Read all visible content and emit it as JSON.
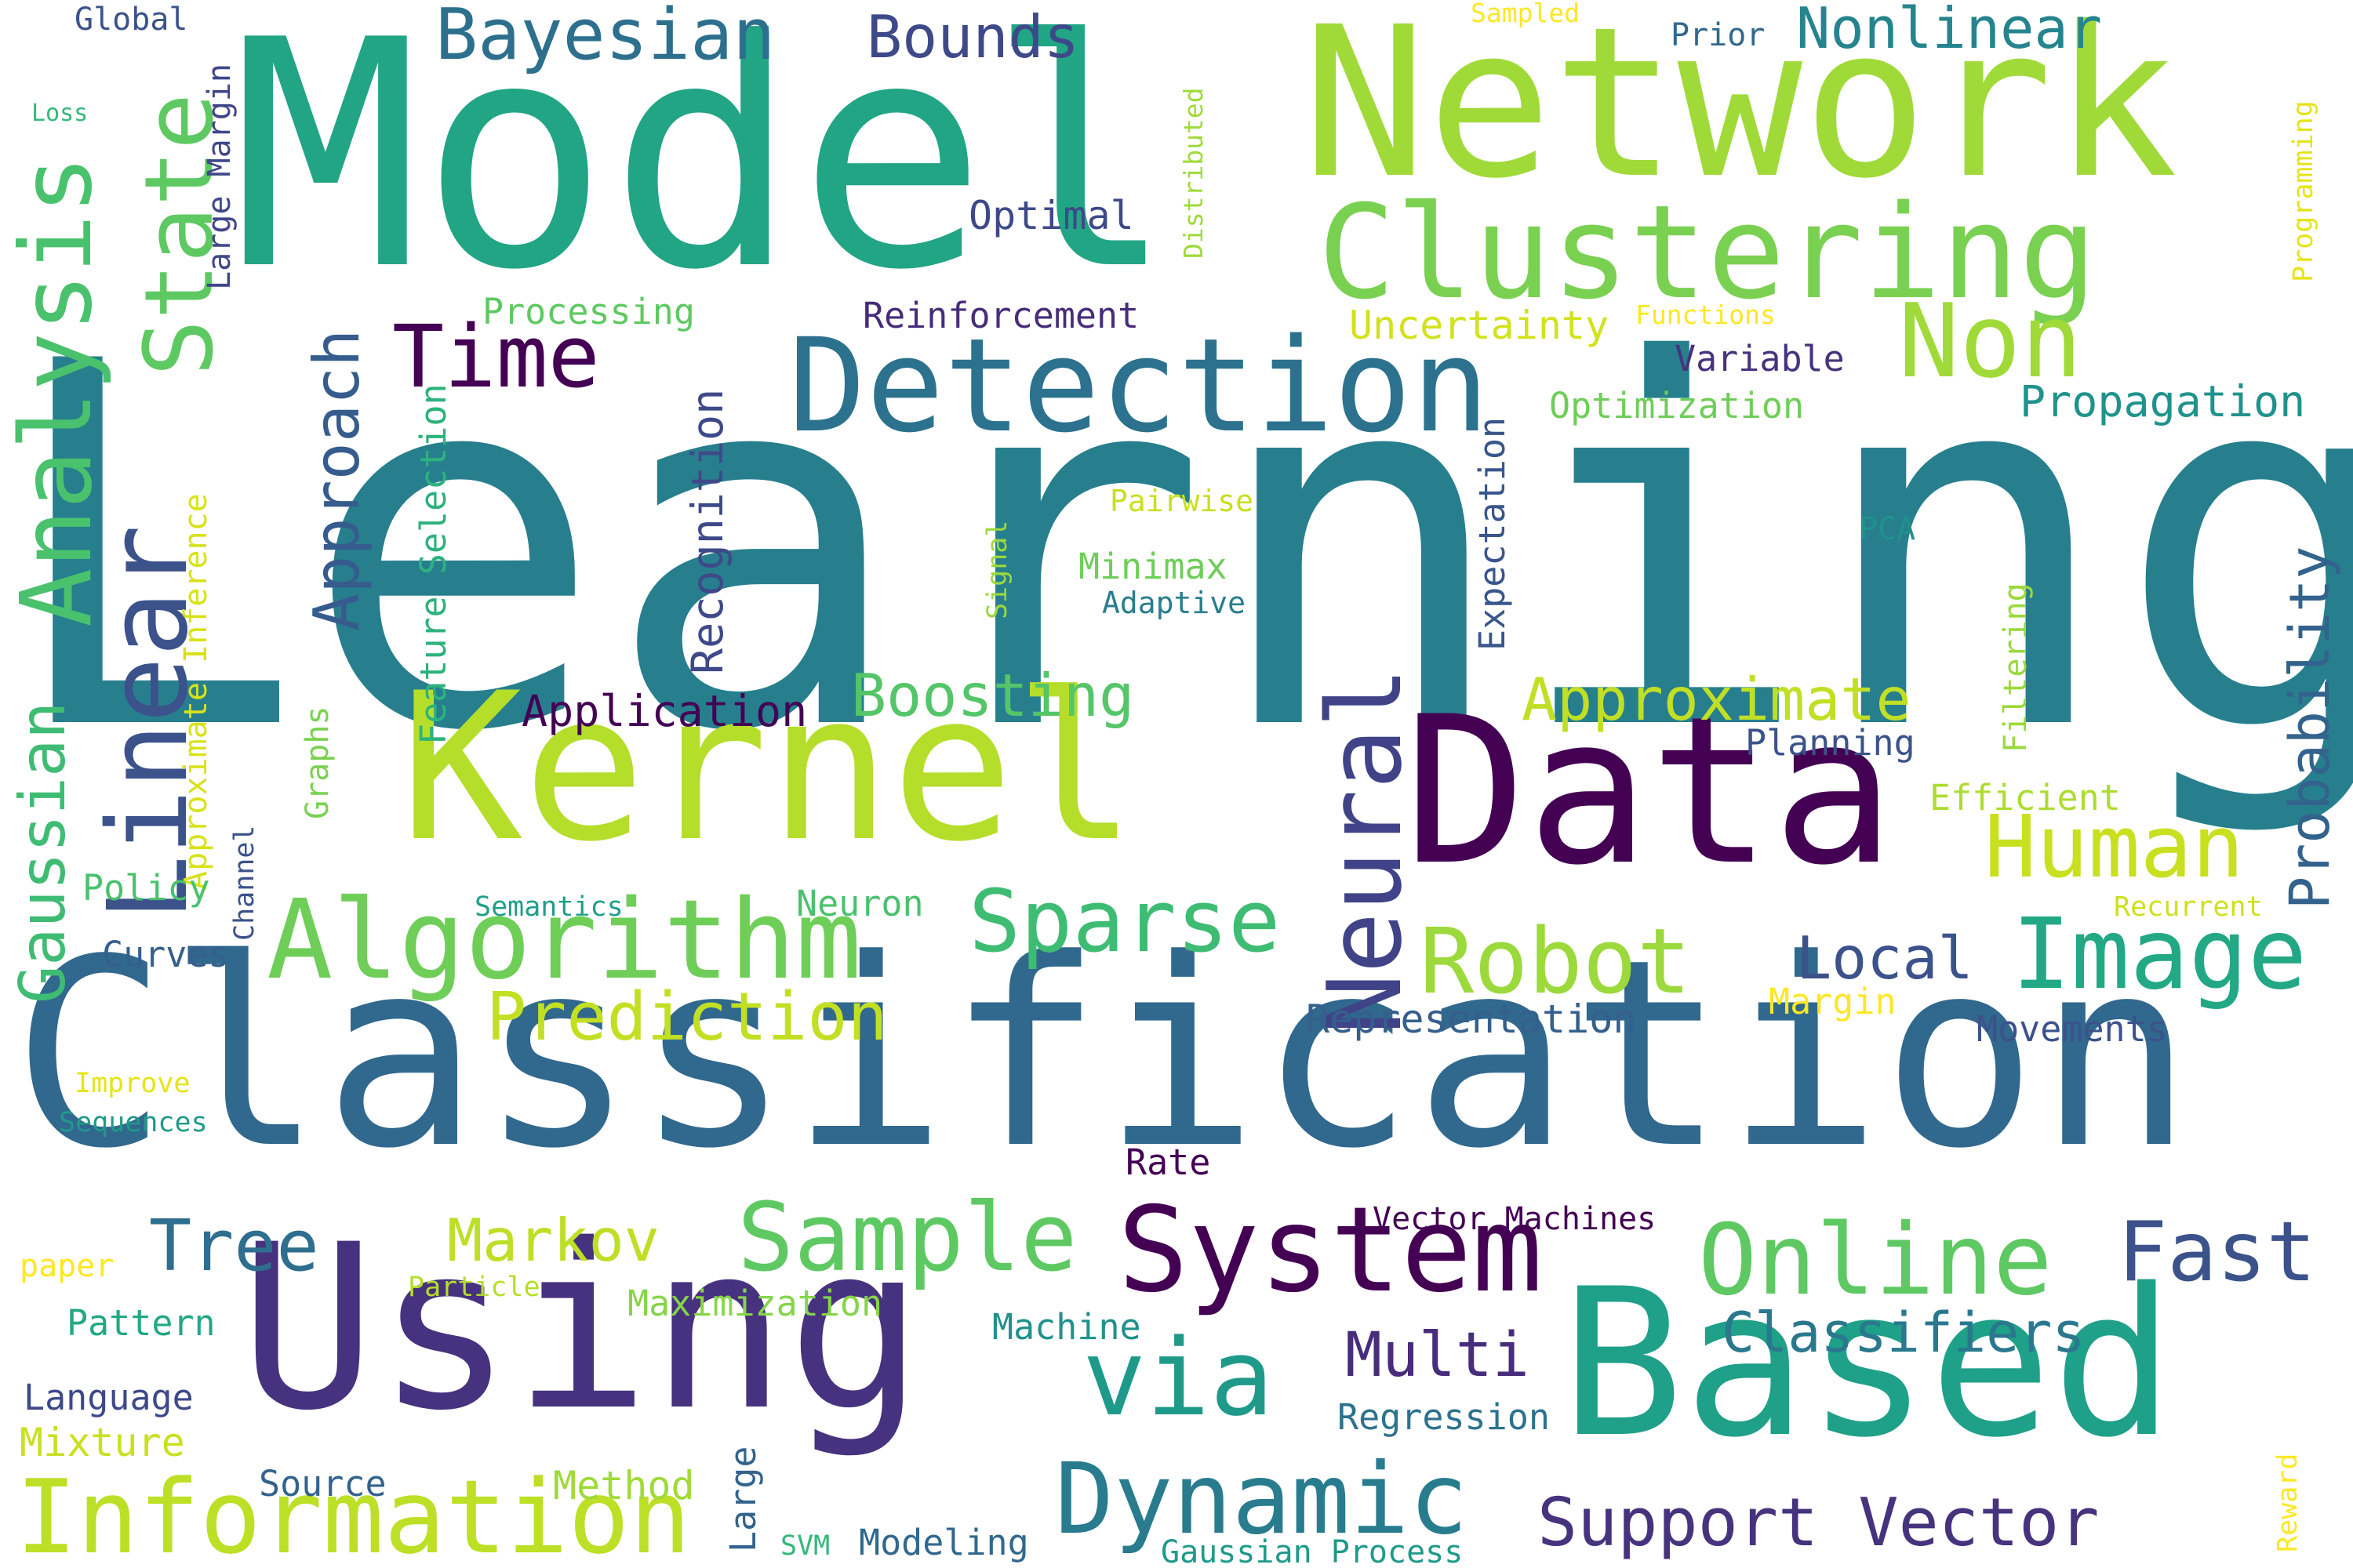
{
  "palette": {
    "background": "#ffffff"
  },
  "words": [
    {
      "id": "w1",
      "text": "Learning",
      "color": "#277f8e"
    },
    {
      "id": "w2",
      "text": "Classification",
      "color": "#31688e"
    },
    {
      "id": "w3",
      "text": "Model",
      "color": "#21a585"
    },
    {
      "id": "w4",
      "text": "Network",
      "color": "#a0da39"
    },
    {
      "id": "w5",
      "text": "Kernel",
      "color": "#b5de2b"
    },
    {
      "id": "w6",
      "text": "Data",
      "color": "#440154"
    },
    {
      "id": "w7",
      "text": "Using",
      "color": "#46327e"
    },
    {
      "id": "w8",
      "text": "Based",
      "color": "#1fa088"
    },
    {
      "id": "w9",
      "text": "Clustering",
      "color": "#7ad151"
    },
    {
      "id": "w10",
      "text": "Detection",
      "color": "#2c728e"
    },
    {
      "id": "w11",
      "text": "Algorithm",
      "color": "#6ece58"
    },
    {
      "id": "w12",
      "text": "System",
      "color": "#440154"
    },
    {
      "id": "w13",
      "text": "Linear",
      "color": "#3b528b"
    },
    {
      "id": "w14",
      "text": "State",
      "color": "#5ec962"
    },
    {
      "id": "w15",
      "text": "Analysis",
      "color": "#4ac16d"
    },
    {
      "id": "w16",
      "text": "Non",
      "color": "#a0da39"
    },
    {
      "id": "w17",
      "text": "Neural",
      "color": "#404387"
    },
    {
      "id": "w18",
      "text": "Image",
      "color": "#22a884"
    },
    {
      "id": "w19",
      "text": "Online",
      "color": "#5ec962"
    },
    {
      "id": "w20",
      "text": "Sample",
      "color": "#5ec962"
    },
    {
      "id": "w21",
      "text": "Information",
      "color": "#bddf26"
    },
    {
      "id": "w22",
      "text": "Dynamic",
      "color": "#287c8e"
    },
    {
      "id": "w23",
      "text": "via",
      "color": "#1f9a8a"
    },
    {
      "id": "w24",
      "text": "Robot",
      "color": "#9bd93c"
    },
    {
      "id": "w25",
      "text": "Sparse",
      "color": "#3fbc73"
    },
    {
      "id": "w26",
      "text": "Human",
      "color": "#c8e020"
    },
    {
      "id": "w27",
      "text": "Fast",
      "color": "#3b528b"
    },
    {
      "id": "w28",
      "text": "Support Vector",
      "color": "#46337e"
    },
    {
      "id": "w29",
      "text": "Time",
      "color": "#440154"
    },
    {
      "id": "w30",
      "text": "Tree",
      "color": "#2e6e8e"
    },
    {
      "id": "w31",
      "text": "Bayesian",
      "color": "#2d708e"
    },
    {
      "id": "w32",
      "text": "Bounds",
      "color": "#3e4989"
    },
    {
      "id": "w33",
      "text": "Nonlinear",
      "color": "#25848e"
    },
    {
      "id": "w34",
      "text": "Approach",
      "color": "#365c8d"
    },
    {
      "id": "w35",
      "text": "Gaussian",
      "color": "#3fbc73"
    },
    {
      "id": "w36",
      "text": "Approximate",
      "color": "#c0df25"
    },
    {
      "id": "w37",
      "text": "Boosting",
      "color": "#54c568"
    },
    {
      "id": "w38",
      "text": "Prediction",
      "color": "#c2df23"
    },
    {
      "id": "w39",
      "text": "Local",
      "color": "#3b528b"
    },
    {
      "id": "w40",
      "text": "Probability",
      "color": "#33638d"
    },
    {
      "id": "w41",
      "text": "Markov",
      "color": "#bddf26"
    },
    {
      "id": "w42",
      "text": "Multi",
      "color": "#472d7b"
    },
    {
      "id": "w43",
      "text": "Classifiers",
      "color": "#2a788e"
    },
    {
      "id": "w44",
      "text": "Application",
      "color": "#440154"
    },
    {
      "id": "w45",
      "text": "Propagation",
      "color": "#20928c"
    },
    {
      "id": "w46",
      "text": "Recognition",
      "color": "#3e4989"
    },
    {
      "id": "w47",
      "text": "Representation",
      "color": "#355f8d"
    },
    {
      "id": "w48",
      "text": "Optimal",
      "color": "#3e4989"
    },
    {
      "id": "w49",
      "text": "Reinforcement",
      "color": "#472c7a"
    },
    {
      "id": "w50",
      "text": "Processing",
      "color": "#5ec962"
    },
    {
      "id": "w51",
      "text": "Uncertainty",
      "color": "#d2e21b"
    },
    {
      "id": "w52",
      "text": "Variable",
      "color": "#46337e"
    },
    {
      "id": "w53",
      "text": "Optimization",
      "color": "#6ece58"
    },
    {
      "id": "w54",
      "text": "Expectation",
      "color": "#39568c"
    },
    {
      "id": "w55",
      "text": "Feature Selection",
      "color": "#2db27d"
    },
    {
      "id": "w56",
      "text": "Large Margin",
      "color": "#404688"
    },
    {
      "id": "w57",
      "text": "Approximate Inference",
      "color": "#d8e219"
    },
    {
      "id": "w58",
      "text": "Minimax",
      "color": "#6ece58"
    },
    {
      "id": "w59",
      "text": "Adaptive",
      "color": "#287d8e"
    },
    {
      "id": "w60",
      "text": "Pairwise",
      "color": "#c8e020"
    },
    {
      "id": "w61",
      "text": "PCA",
      "color": "#21918c"
    },
    {
      "id": "w62",
      "text": "Planning",
      "color": "#3b528b"
    },
    {
      "id": "w63",
      "text": "Efficient",
      "color": "#addc30"
    },
    {
      "id": "w64",
      "text": "Filtering",
      "color": "#9bd93c"
    },
    {
      "id": "w65",
      "text": "Recurrent",
      "color": "#cde11d"
    },
    {
      "id": "w66",
      "text": "Movements",
      "color": "#3b528b"
    },
    {
      "id": "w67",
      "text": "Margin",
      "color": "#fde725"
    },
    {
      "id": "w68",
      "text": "Neuron",
      "color": "#4ac16d"
    },
    {
      "id": "w69",
      "text": "Semantics",
      "color": "#1f9e89"
    },
    {
      "id": "w70",
      "text": "Policy",
      "color": "#4ac16d"
    },
    {
      "id": "w71",
      "text": "Curves",
      "color": "#355f8d"
    },
    {
      "id": "w72",
      "text": "Channel",
      "color": "#3b528b"
    },
    {
      "id": "w73",
      "text": "Graphs",
      "color": "#7ad151"
    },
    {
      "id": "w74",
      "text": "Signal",
      "color": "#9bd93c"
    },
    {
      "id": "w75",
      "text": "Improve",
      "color": "#e5e419"
    },
    {
      "id": "w76",
      "text": "Sequences",
      "color": "#1f9a8a"
    },
    {
      "id": "w77",
      "text": "Rate",
      "color": "#440154"
    },
    {
      "id": "w78",
      "text": "Vector Machines",
      "color": "#440154"
    },
    {
      "id": "w79",
      "text": "paper",
      "color": "#fde725"
    },
    {
      "id": "w80",
      "text": "Particle",
      "color": "#b5de2b"
    },
    {
      "id": "w81",
      "text": "Maximization",
      "color": "#86d549"
    },
    {
      "id": "w82",
      "text": "Pattern",
      "color": "#22a884"
    },
    {
      "id": "w83",
      "text": "Machine",
      "color": "#21918c"
    },
    {
      "id": "w84",
      "text": "Language",
      "color": "#3e4989"
    },
    {
      "id": "w85",
      "text": "Mixture",
      "color": "#c8e020"
    },
    {
      "id": "w86",
      "text": "Regression",
      "color": "#2c728e"
    },
    {
      "id": "w87",
      "text": "Source",
      "color": "#33638d"
    },
    {
      "id": "w88",
      "text": "Method",
      "color": "#a0da39"
    },
    {
      "id": "w89",
      "text": "Large",
      "color": "#33638d"
    },
    {
      "id": "w90",
      "text": "SVM",
      "color": "#35b779"
    },
    {
      "id": "w91",
      "text": "Modeling",
      "color": "#31688e"
    },
    {
      "id": "w92",
      "text": "Gaussian Process",
      "color": "#1f9a8a"
    },
    {
      "id": "w93",
      "text": "Reward",
      "color": "#fde725"
    },
    {
      "id": "w94",
      "text": "Global",
      "color": "#3b528b"
    },
    {
      "id": "w95",
      "text": "Loss",
      "color": "#35b779"
    },
    {
      "id": "w96",
      "text": "Sampled",
      "color": "#fde725"
    },
    {
      "id": "w97",
      "text": "Prior",
      "color": "#31688e"
    },
    {
      "id": "w98",
      "text": "Distributed",
      "color": "#a0da39"
    },
    {
      "id": "w99",
      "text": "Programming",
      "color": "#e5e419"
    },
    {
      "id": "w100",
      "text": "Functions",
      "color": "#fde725"
    }
  ]
}
